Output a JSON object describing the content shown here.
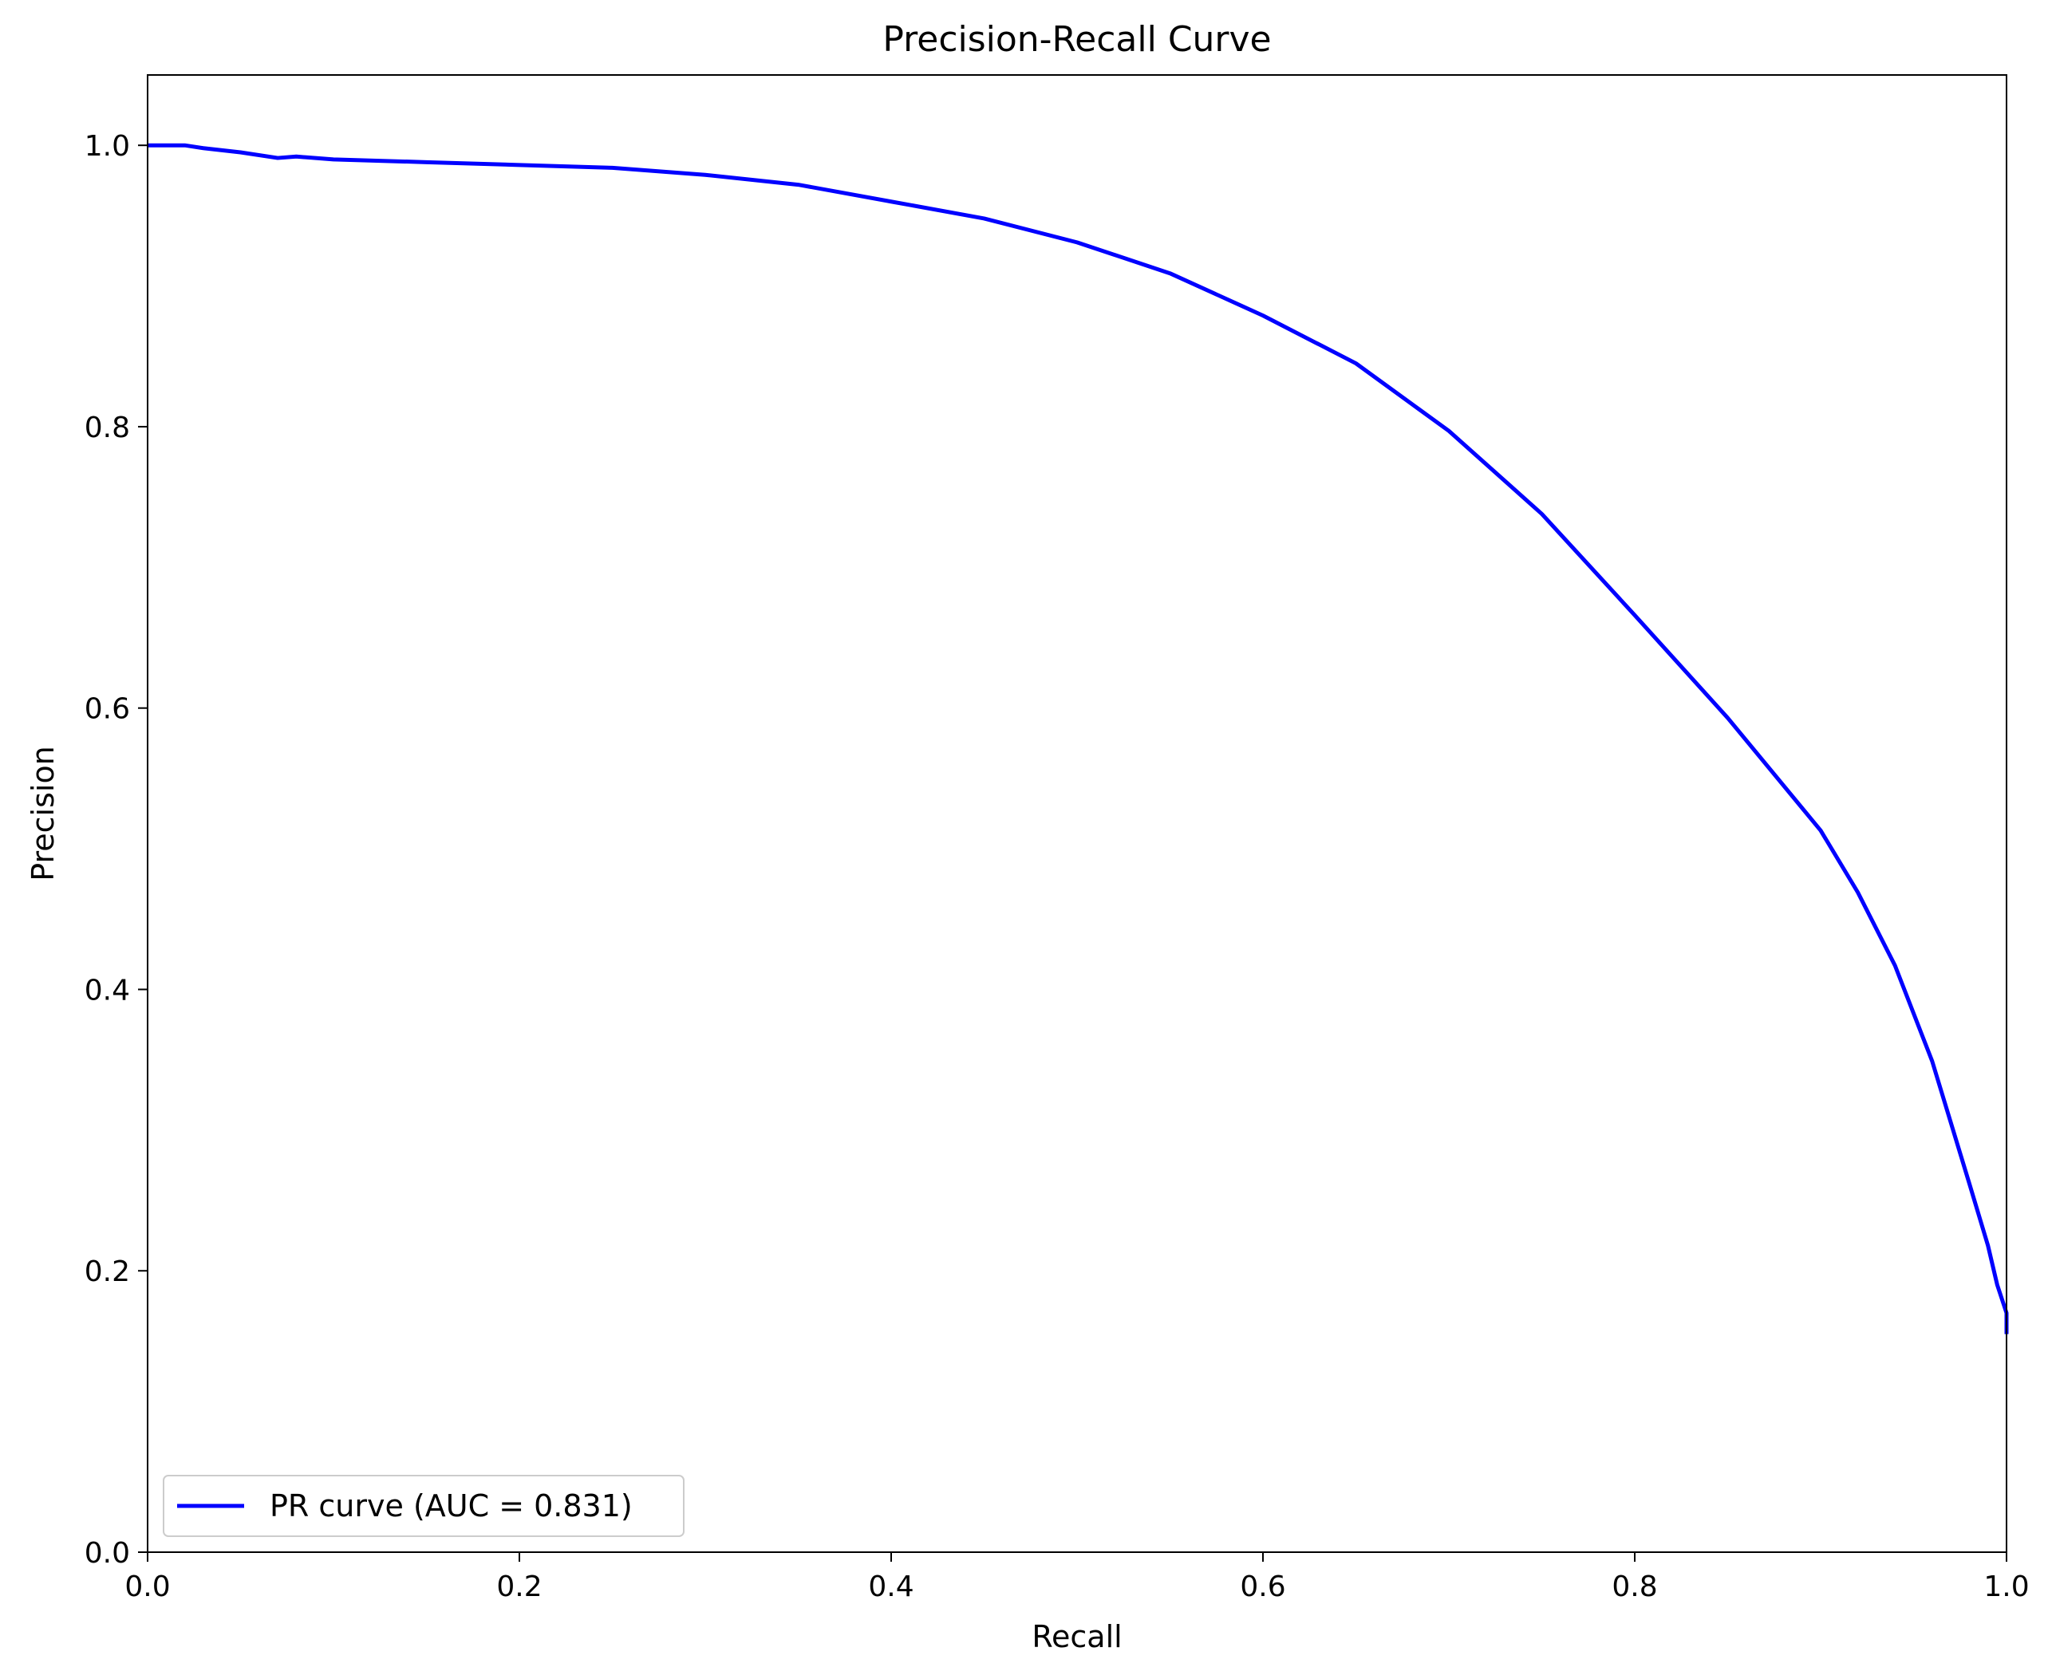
{
  "chart_data": {
    "type": "line",
    "title": "Precision-Recall Curve",
    "xlabel": "Recall",
    "ylabel": "Precision",
    "xlim": [
      0.0,
      1.0
    ],
    "ylim": [
      0.0,
      1.05
    ],
    "x_ticks": [
      "0.0",
      "0.2",
      "0.4",
      "0.6",
      "0.8",
      "1.0"
    ],
    "y_ticks": [
      "0.0",
      "0.2",
      "0.4",
      "0.6",
      "0.8",
      "1.0"
    ],
    "grid": false,
    "legend_position": "lower-left",
    "series": [
      {
        "name": "PR curve (AUC = 0.831)",
        "color": "#0000ff",
        "x": [
          0.0,
          0.02,
          0.03,
          0.05,
          0.07,
          0.08,
          0.1,
          0.15,
          0.2,
          0.25,
          0.3,
          0.35,
          0.4,
          0.45,
          0.5,
          0.55,
          0.6,
          0.65,
          0.7,
          0.75,
          0.8,
          0.85,
          0.9,
          0.92,
          0.94,
          0.96,
          0.98,
          0.99,
          0.995,
          1.0,
          1.0
        ],
        "y": [
          1.0,
          1.0,
          0.998,
          0.995,
          0.991,
          0.992,
          0.99,
          0.988,
          0.986,
          0.984,
          0.979,
          0.972,
          0.96,
          0.948,
          0.931,
          0.909,
          0.879,
          0.845,
          0.797,
          0.738,
          0.666,
          0.593,
          0.513,
          0.469,
          0.417,
          0.349,
          0.262,
          0.218,
          0.19,
          0.17,
          0.155
        ]
      }
    ]
  }
}
